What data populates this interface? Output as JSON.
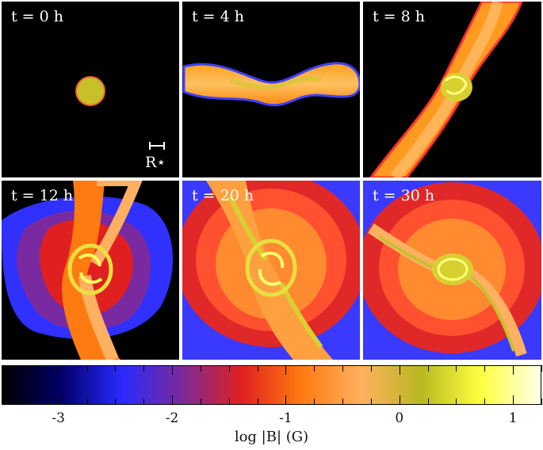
{
  "panels": [
    {
      "time": "t = 0 h"
    },
    {
      "time": "t = 4 h"
    },
    {
      "time": "t = 8 h"
    },
    {
      "time": "t = 12 h"
    },
    {
      "time": "t = 20 h"
    },
    {
      "time": "t = 30 h"
    }
  ],
  "scale_bar_label": "R⋆",
  "colorbar": {
    "label": "log |B| (G)",
    "ticks": [
      "-3",
      "-2",
      "-1",
      "0",
      "1"
    ],
    "range": [
      -3.5,
      1.25
    ],
    "colors": [
      "#000000",
      "#00006a",
      "#2a2aff",
      "#7a2a9a",
      "#e02020",
      "#ff7a10",
      "#ffb060",
      "#b8b820",
      "#ffff40",
      "#ffffe8"
    ]
  }
}
